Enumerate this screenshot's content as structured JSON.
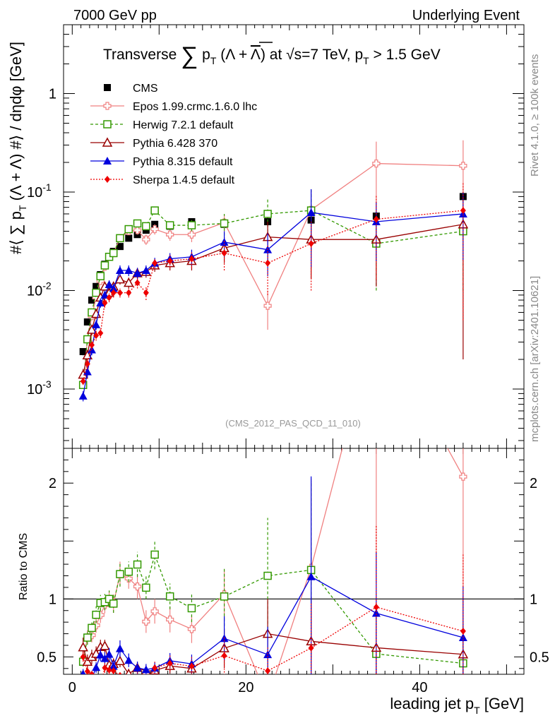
{
  "header": {
    "left": "7000 GeV pp",
    "right": "Underlying Event"
  },
  "side_text": {
    "rivet": "Rivet 4.1.0, ≥ 100k events",
    "source": "mcplots.cern.ch [arXiv:2401.10621]"
  },
  "chart_data": {
    "type": "scatter",
    "title": "Transverse ∑ p_T (Λ + Λbar) at √s=7 TeV, p_T > 1.5 GeV",
    "xlabel": "leading jet p_T [GeV]",
    "ylabel": "#⟨ ∑ p_T (Λ + Λbar) #⟩ / dηdφ [GeV]",
    "ratio_ylabel": "Ratio to CMS",
    "watermark": "(CMS_2012_PAS_QCD_11_010)",
    "xlim": [
      -1,
      52
    ],
    "ylim": [
      0.00025,
      5
    ],
    "yscale": "log",
    "ratio_ylim": [
      0.35,
      2.3
    ],
    "x_ticks": [
      0,
      20,
      40
    ],
    "y_ticks": [
      {
        "value": 0.001,
        "base": "10",
        "exp": "-3"
      },
      {
        "value": 0.01,
        "base": "10",
        "exp": "-2"
      },
      {
        "value": 0.1,
        "base": "10",
        "exp": "-1"
      },
      {
        "value": 1,
        "base": "1",
        "exp": ""
      }
    ],
    "ratio_ticks": [
      {
        "value": 0.5,
        "label": "0.5"
      },
      {
        "value": 1,
        "label": "1"
      },
      {
        "value": 2,
        "label": "2"
      }
    ],
    "x": [
      1.25,
      1.75,
      2.25,
      2.75,
      3.25,
      3.75,
      4.25,
      4.75,
      5.5,
      6.5,
      7.5,
      8.5,
      9.5,
      11.25,
      13.75,
      17.5,
      22.5,
      27.5,
      35,
      45
    ],
    "series": [
      {
        "name": "CMS",
        "color": "#000000",
        "marker": "square-filled",
        "dash": "none",
        "line": false,
        "values": [
          0.0024,
          0.0048,
          0.008,
          0.011,
          0.0145,
          0.0185,
          0.022,
          0.025,
          0.028,
          0.034,
          0.037,
          0.041,
          0.047,
          0.045,
          0.05,
          0.047,
          0.05,
          0.052,
          0.057,
          0.09
        ],
        "errors": [
          0.0002,
          0.0003,
          0.0005,
          0.0007,
          0.0009,
          0.001,
          0.0012,
          0.0014,
          0.0015,
          0.0018,
          0.002,
          0.0022,
          0.0025,
          0.0025,
          0.003,
          0.004,
          0.005,
          0.006,
          0.006,
          0.01
        ]
      },
      {
        "name": "Epos 1.99.crmc.1.6.0 lhc",
        "color": "#f08080",
        "marker": "cross-open",
        "dash": "none",
        "line": true,
        "values": [
          0.0011,
          0.0032,
          0.0055,
          0.0085,
          0.0125,
          0.0175,
          0.022,
          0.024,
          0.034,
          0.04,
          0.041,
          0.033,
          0.042,
          0.037,
          0.037,
          0.049,
          0.007,
          0.066,
          0.195,
          0.185
        ],
        "errors": [
          0.0001,
          0.0003,
          0.0005,
          0.0007,
          0.001,
          0.0013,
          0.0016,
          0.002,
          0.003,
          0.003,
          0.004,
          0.004,
          0.005,
          0.005,
          0.006,
          0.01,
          0.003,
          0.04,
          0.13,
          0.15
        ]
      },
      {
        "name": "Herwig 7.2.1 default",
        "color": "#339900",
        "marker": "square-open",
        "dash": "4,3",
        "line": true,
        "values": [
          0.0011,
          0.0032,
          0.006,
          0.0095,
          0.014,
          0.018,
          0.022,
          0.024,
          0.034,
          0.042,
          0.048,
          0.045,
          0.065,
          0.046,
          0.046,
          0.048,
          0.06,
          0.065,
          0.03,
          0.04
        ],
        "errors": [
          0.0001,
          0.0003,
          0.0005,
          0.0008,
          0.001,
          0.0013,
          0.0016,
          0.002,
          0.003,
          0.003,
          0.004,
          0.004,
          0.006,
          0.005,
          0.006,
          0.012,
          0.025,
          0.04,
          0.02,
          0.03
        ]
      },
      {
        "name": "Pythia 6.428 370",
        "color": "#990000",
        "marker": "triangle-open",
        "dash": "none",
        "line": true,
        "values": [
          0.0014,
          0.0022,
          0.004,
          0.0058,
          0.0085,
          0.011,
          0.0095,
          0.011,
          0.013,
          0.012,
          0.015,
          0.0155,
          0.018,
          0.019,
          0.02,
          0.027,
          0.035,
          0.033,
          0.033,
          0.047
        ],
        "errors": [
          0.0002,
          0.0003,
          0.0005,
          0.0007,
          0.0009,
          0.001,
          0.001,
          0.0012,
          0.0015,
          0.0015,
          0.002,
          0.002,
          0.0025,
          0.003,
          0.004,
          0.008,
          0.015,
          0.02,
          0.022,
          0.045
        ]
      },
      {
        "name": "Pythia 8.315 default",
        "color": "#0000dd",
        "marker": "triangle-filled",
        "dash": "none",
        "line": true,
        "values": [
          0.00085,
          0.0015,
          0.0025,
          0.0045,
          0.0075,
          0.009,
          0.0115,
          0.0105,
          0.016,
          0.016,
          0.015,
          0.016,
          0.019,
          0.021,
          0.022,
          0.031,
          0.026,
          0.062,
          0.05,
          0.06
        ],
        "errors": [
          0.0001,
          0.0002,
          0.0003,
          0.0005,
          0.0008,
          0.001,
          0.0012,
          0.0012,
          0.002,
          0.002,
          0.002,
          0.002,
          0.0025,
          0.003,
          0.004,
          0.009,
          0.012,
          0.045,
          0.03,
          0.04
        ]
      },
      {
        "name": "Sherpa 1.4.5 default",
        "color": "#ee0000",
        "marker": "diamond-filled",
        "dash": "2,2",
        "line": true,
        "values": [
          0.0012,
          0.0018,
          0.0028,
          0.0035,
          0.0037,
          0.0075,
          0.0085,
          0.0095,
          0.0095,
          0.0095,
          0.012,
          0.0095,
          0.019,
          0.02,
          0.021,
          0.024,
          0.019,
          0.03,
          0.053,
          0.065
        ],
        "errors": [
          0.0001,
          0.0002,
          0.0003,
          0.0004,
          0.0004,
          0.0008,
          0.0009,
          0.001,
          0.001,
          0.001,
          0.0015,
          0.0015,
          0.0025,
          0.003,
          0.004,
          0.008,
          0.01,
          0.02,
          0.04,
          0.06
        ]
      }
    ]
  }
}
